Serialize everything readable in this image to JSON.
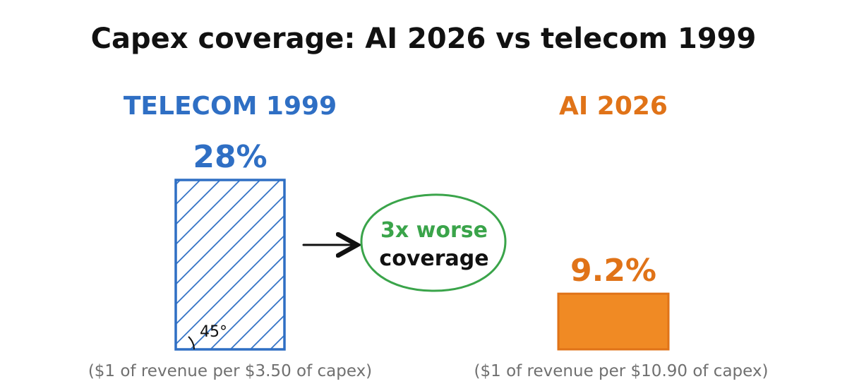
{
  "title": "Capex coverage: AI 2026 vs telecom 1999",
  "colors": {
    "telecom": "#2f6fc4",
    "ai": "#e07318",
    "ai_fill": "#f08a24",
    "callout": "#3aa44a",
    "text": "#111111",
    "note": "#707070"
  },
  "callout": {
    "line1": "3x worse",
    "line2": "coverage",
    "arrow_icon": "arrow-right-icon"
  },
  "angle_label": "45°",
  "chart_data": {
    "type": "bar",
    "title": "Capex coverage: AI 2026 vs telecom 1999",
    "categories": [
      "TELECOM 1999",
      "AI 2026"
    ],
    "values": [
      28,
      9.2
    ],
    "value_labels": [
      "28%",
      "9.2%"
    ],
    "notes": [
      "($1 of revenue per $3.50 of capex)",
      "($1 of revenue per $10.90 of capex)"
    ],
    "ylim": [
      0,
      28
    ],
    "grid": false,
    "legend": "none"
  }
}
